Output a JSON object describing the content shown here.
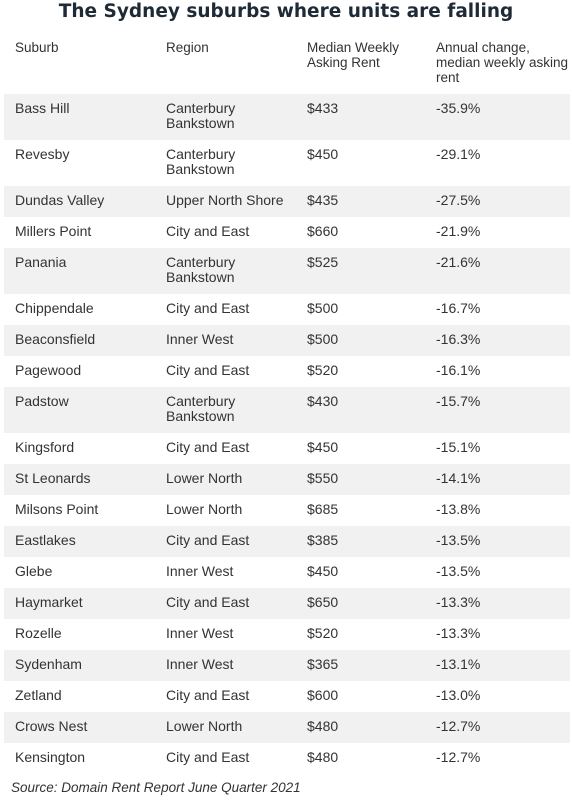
{
  "title": "The Sydney suburbs where units are falling",
  "headers": {
    "suburb": "Suburb",
    "region": "Region",
    "rent": "Median Weekly Asking Rent",
    "change": "Annual change, median weekly asking rent"
  },
  "rows": [
    {
      "suburb": "Bass Hill",
      "region": "Canterbury Bankstown",
      "rent": "$433",
      "change": "-35.9%"
    },
    {
      "suburb": "Revesby",
      "region": "Canterbury Bankstown",
      "rent": "$450",
      "change": "-29.1%"
    },
    {
      "suburb": "Dundas Valley",
      "region": "Upper North Shore",
      "rent": "$435",
      "change": "-27.5%"
    },
    {
      "suburb": "Millers Point",
      "region": "City and East",
      "rent": "$660",
      "change": "-21.9%"
    },
    {
      "suburb": "Panania",
      "region": "Canterbury Bankstown",
      "rent": "$525",
      "change": "-21.6%"
    },
    {
      "suburb": "Chippendale",
      "region": "City and East",
      "rent": "$500",
      "change": "-16.7%"
    },
    {
      "suburb": "Beaconsfield",
      "region": "Inner West",
      "rent": "$500",
      "change": "-16.3%"
    },
    {
      "suburb": "Pagewood",
      "region": "City and East",
      "rent": "$520",
      "change": "-16.1%"
    },
    {
      "suburb": "Padstow",
      "region": "Canterbury Bankstown",
      "rent": "$430",
      "change": "-15.7%"
    },
    {
      "suburb": "Kingsford",
      "region": "City and East",
      "rent": "$450",
      "change": "-15.1%"
    },
    {
      "suburb": "St Leonards",
      "region": "Lower North",
      "rent": "$550",
      "change": "-14.1%"
    },
    {
      "suburb": "Milsons Point",
      "region": "Lower North",
      "rent": "$685",
      "change": "-13.8%"
    },
    {
      "suburb": "Eastlakes",
      "region": "City and East",
      "rent": "$385",
      "change": "-13.5%"
    },
    {
      "suburb": "Glebe",
      "region": "Inner West",
      "rent": "$450",
      "change": "-13.5%"
    },
    {
      "suburb": "Haymarket",
      "region": "City and East",
      "rent": "$650",
      "change": "-13.3%"
    },
    {
      "suburb": "Rozelle",
      "region": "Inner West",
      "rent": "$520",
      "change": "-13.3%"
    },
    {
      "suburb": "Sydenham",
      "region": "Inner West",
      "rent": "$365",
      "change": "-13.1%"
    },
    {
      "suburb": "Zetland",
      "region": "City and East",
      "rent": "$600",
      "change": "-13.0%"
    },
    {
      "suburb": "Crows Nest",
      "region": "Lower North",
      "rent": "$480",
      "change": "-12.7%"
    },
    {
      "suburb": "Kensington",
      "region": "City and East",
      "rent": "$480",
      "change": "-12.7%"
    }
  ],
  "source": "Source: Domain Rent Report June Quarter 2021",
  "colors": {
    "title": "#1e2a36",
    "text": "#333333",
    "shaded_row": "#f1f1f1"
  }
}
